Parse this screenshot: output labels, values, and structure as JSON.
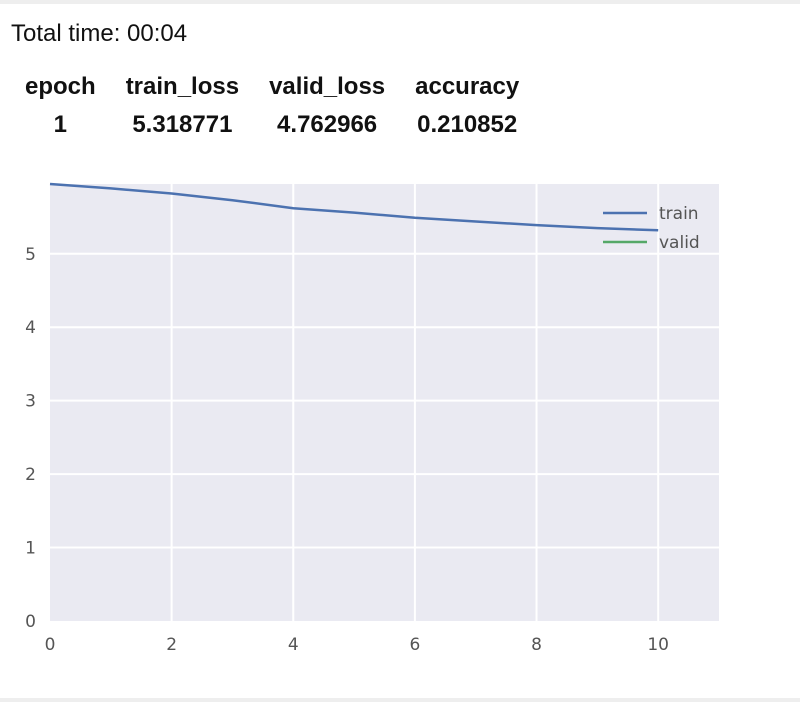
{
  "header": {
    "total_time": "Total time: 00:04"
  },
  "metrics_table": {
    "columns": [
      "epoch",
      "train_loss",
      "valid_loss",
      "accuracy"
    ],
    "rows": [
      [
        "1",
        "5.318771",
        "4.762966",
        "0.210852"
      ]
    ]
  },
  "chart_data": {
    "type": "line",
    "title": "",
    "xlabel": "",
    "ylabel": "",
    "xlim": [
      0,
      11
    ],
    "ylim": [
      0,
      5.95
    ],
    "xticks": [
      0,
      2,
      4,
      6,
      8,
      10
    ],
    "yticks": [
      0,
      1,
      2,
      3,
      4,
      5
    ],
    "grid": true,
    "legend_position": "top-right",
    "series": [
      {
        "name": "train",
        "color": "#4c72b0",
        "x": [
          0,
          1,
          2,
          3,
          4,
          5,
          6,
          7,
          8,
          9,
          10
        ],
        "y": [
          5.95,
          5.89,
          5.82,
          5.73,
          5.62,
          5.56,
          5.49,
          5.44,
          5.39,
          5.35,
          5.32
        ]
      },
      {
        "name": "valid",
        "color": "#55a868",
        "x": [],
        "y": []
      }
    ]
  }
}
